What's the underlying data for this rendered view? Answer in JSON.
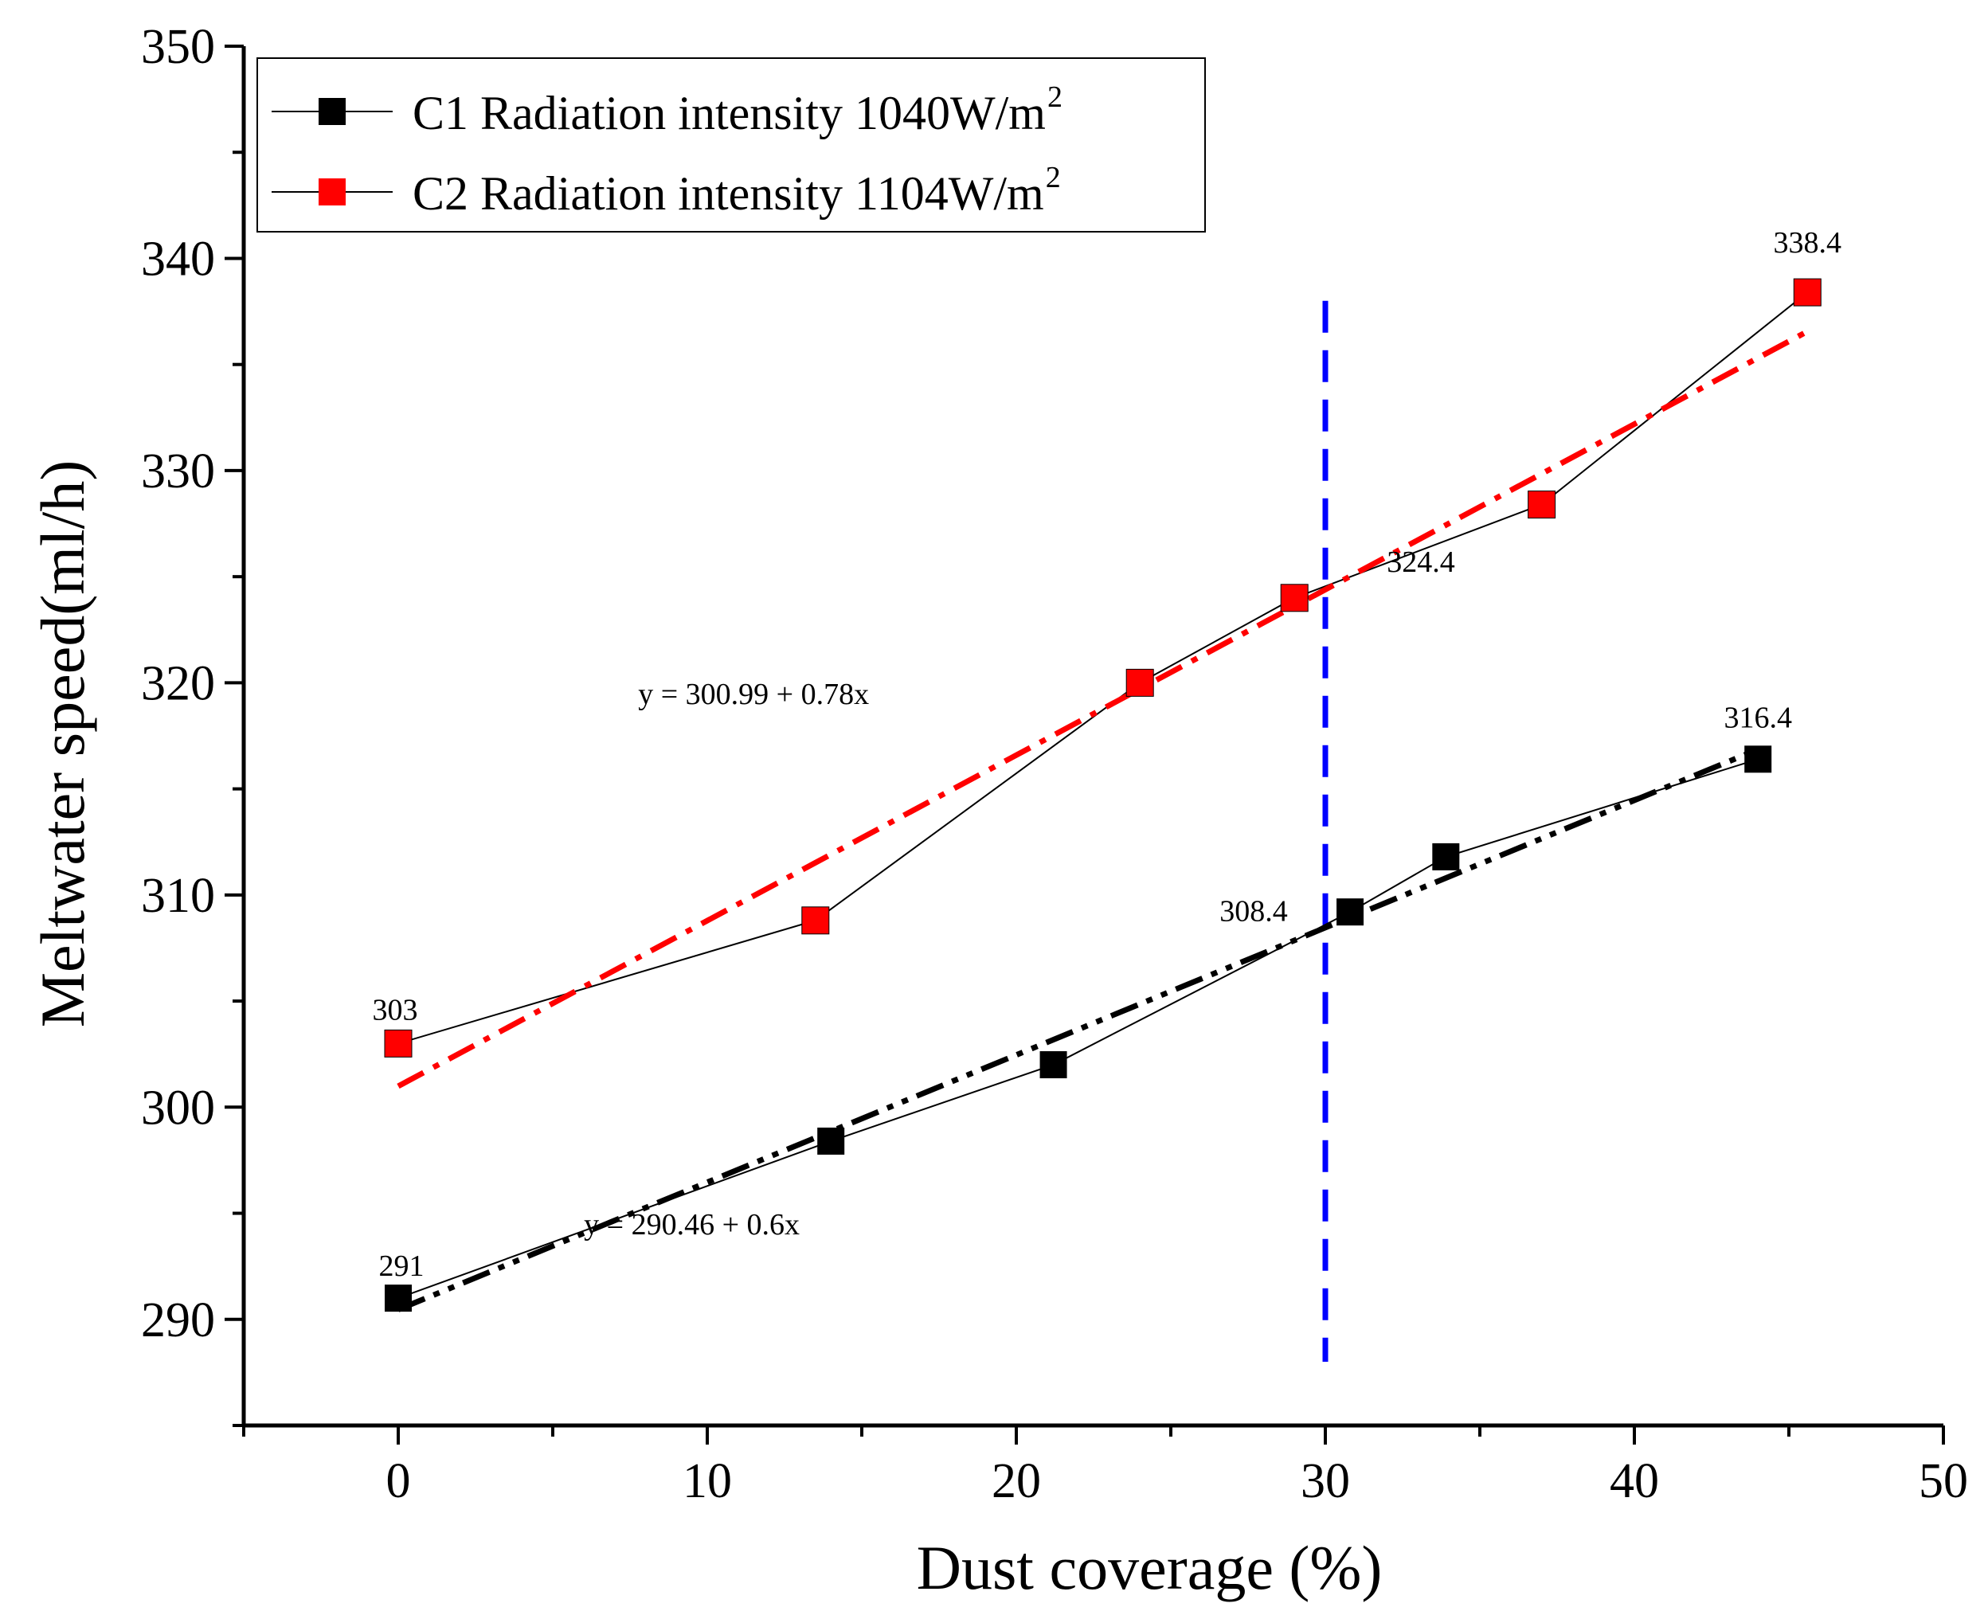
{
  "chart_data": {
    "type": "line",
    "title": "",
    "xlabel": "Dust coverage (%)",
    "ylabel": "Meltwater speed(ml/h)",
    "xlim": [
      -5,
      50
    ],
    "ylim": [
      285,
      350
    ],
    "x_ticks": [
      0,
      10,
      20,
      30,
      40,
      50
    ],
    "y_ticks": [
      290,
      300,
      310,
      320,
      330,
      340,
      350
    ],
    "grid": false,
    "legend_position": "top-left",
    "series": [
      {
        "name": "C1",
        "legend_label": "C1 Radiation intensity 1040W/m",
        "legend_sup": "2",
        "color": "#000000",
        "marker": "square",
        "x": [
          0,
          14,
          21.2,
          30.8,
          33.9,
          44
        ],
        "y": [
          291,
          298.4,
          302,
          309.2,
          311.8,
          316.4
        ],
        "fit": {
          "intercept": 290.46,
          "slope": 0.6,
          "x_range": [
            0,
            44
          ],
          "style": "dash-dot-dot",
          "color": "#000000",
          "equation": "y = 290.46 + 0.6x"
        }
      },
      {
        "name": "C2",
        "legend_label": "C2 Radiation intensity 1104W/m",
        "legend_sup": "2",
        "color": "#ff0000",
        "marker": "square",
        "x": [
          0,
          13.5,
          24,
          29,
          37,
          45.6
        ],
        "y": [
          303,
          308.8,
          320,
          324,
          328.4,
          338.4
        ],
        "fit": {
          "intercept": 300.99,
          "slope": 0.78,
          "x_range": [
            0,
            45.6
          ],
          "style": "dash-dot",
          "color": "#ff0000",
          "equation": "y = 300.99 + 0.78x"
        }
      }
    ],
    "reference_line": {
      "orientation": "vertical",
      "x": 30,
      "y_range": [
        288,
        338
      ],
      "color": "#0000ff",
      "style": "dashed"
    },
    "annotations": [
      {
        "text": "291",
        "x": 0,
        "y": 291
      },
      {
        "text": "303",
        "x": 0,
        "y": 303
      },
      {
        "text": "308.4",
        "x": 30,
        "y": 308.4
      },
      {
        "text": "324.4",
        "x": 30,
        "y": 324.4
      },
      {
        "text": "316.4",
        "x": 44,
        "y": 316.4
      },
      {
        "text": "338.4",
        "x": 45.6,
        "y": 338.4
      }
    ]
  }
}
